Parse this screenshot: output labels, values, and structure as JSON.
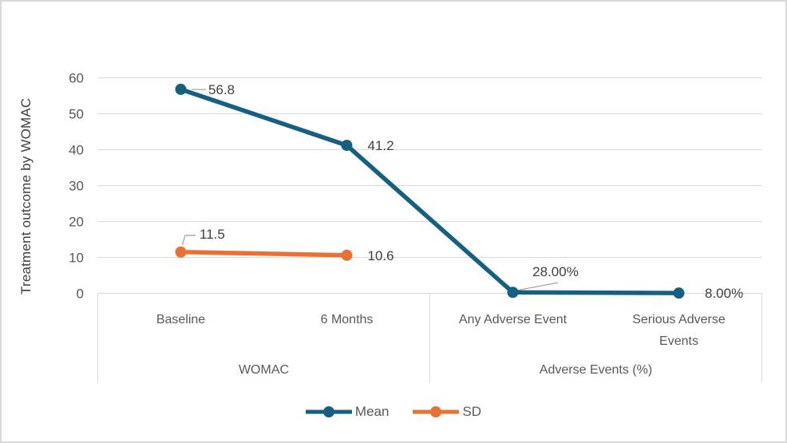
{
  "chart_data": {
    "type": "line",
    "title": "",
    "ylabel": "Treatment outcome by WOMAC",
    "xlabel": "",
    "categories": [
      "Baseline",
      "6 Months",
      "Any Adverse Event",
      "Serious Adverse Events"
    ],
    "category_groups": [
      {
        "label": "WOMAC",
        "span": [
          0,
          1
        ]
      },
      {
        "label": "Adverse Events (%)",
        "span": [
          2,
          3
        ]
      }
    ],
    "yticks": [
      0,
      10,
      20,
      30,
      40,
      50,
      60
    ],
    "ylim": [
      0,
      60
    ],
    "grid": true,
    "legend_position": "bottom",
    "series": [
      {
        "name": "Mean",
        "color": "#156082",
        "values": [
          56.8,
          41.2,
          0.28,
          0.08
        ],
        "labels": [
          "56.8",
          "41.2",
          "28.00%",
          "8.00%"
        ]
      },
      {
        "name": "SD",
        "color": "#E97132",
        "values": [
          11.5,
          10.6,
          null,
          null
        ],
        "labels": [
          "11.5",
          "10.6",
          null,
          null
        ]
      }
    ]
  },
  "colors": {
    "gridline": "#d9d9d9",
    "divider": "#d9d9d9",
    "axis_text": "#595959",
    "label_text": "#404040",
    "leader_line": "#a6a6a6",
    "figure_border": "#d9d9d9"
  }
}
